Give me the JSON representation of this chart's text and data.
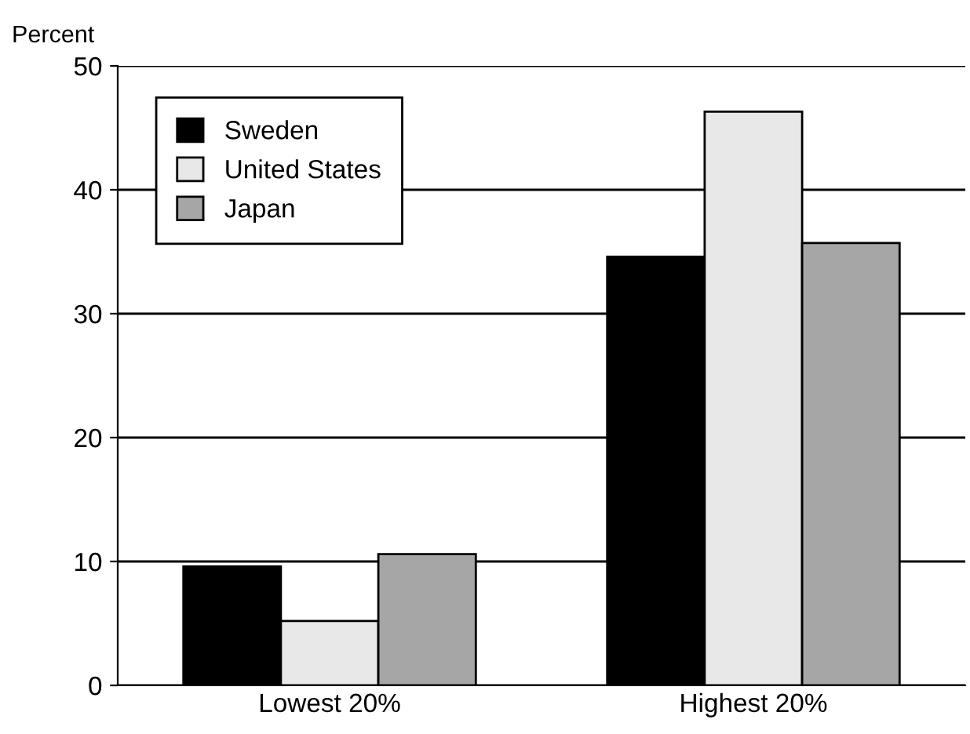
{
  "chart_data": {
    "type": "bar",
    "ylabel": "Percent",
    "categories": [
      "Lowest 20%",
      "Highest 20%"
    ],
    "series": [
      {
        "name": "Sweden",
        "color": "#000000",
        "values": [
          9.6,
          34.6
        ]
      },
      {
        "name": "United States",
        "color": "#e8e8e8",
        "values": [
          5.2,
          46.3
        ]
      },
      {
        "name": "Japan",
        "color": "#a6a6a6",
        "values": [
          10.6,
          35.7
        ]
      }
    ],
    "ylim": [
      0,
      50
    ],
    "yticks": [
      0,
      10,
      20,
      30,
      40,
      50
    ],
    "grid": "y",
    "legend": "top left"
  }
}
